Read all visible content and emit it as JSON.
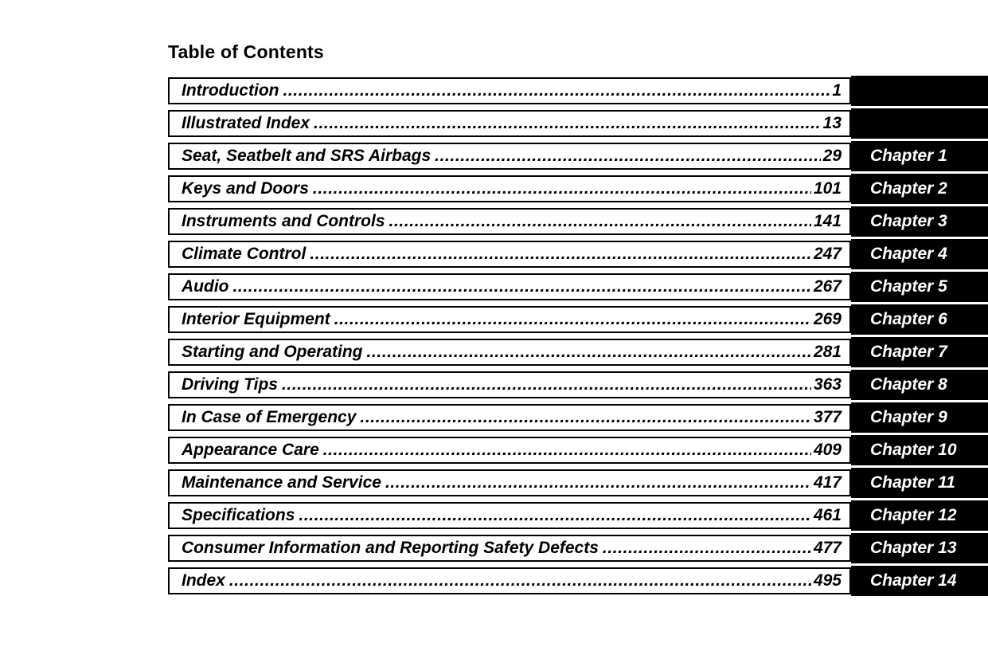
{
  "page": {
    "title": "Table of Contents"
  },
  "colors": {
    "background": "#ffffff",
    "ink": "#000000",
    "tab_bg": "#000000",
    "tab_text": "#ffffff"
  },
  "toc": {
    "entries": [
      {
        "label": "Introduction",
        "page": "1",
        "chapter": ""
      },
      {
        "label": "Illustrated Index",
        "page": "13",
        "chapter": ""
      },
      {
        "label": "Seat, Seatbelt and SRS Airbags",
        "page": "29",
        "chapter": "Chapter 1"
      },
      {
        "label": "Keys and Doors",
        "page": "101",
        "chapter": "Chapter 2"
      },
      {
        "label": "Instruments and Controls",
        "page": "141",
        "chapter": "Chapter 3"
      },
      {
        "label": "Climate Control",
        "page": "247",
        "chapter": "Chapter 4"
      },
      {
        "label": "Audio",
        "page": "267",
        "chapter": "Chapter 5"
      },
      {
        "label": "Interior Equipment",
        "page": "269",
        "chapter": "Chapter 6"
      },
      {
        "label": "Starting and Operating",
        "page": "281",
        "chapter": "Chapter 7"
      },
      {
        "label": "Driving Tips",
        "page": "363",
        "chapter": "Chapter 8"
      },
      {
        "label": "In Case of Emergency",
        "page": "377",
        "chapter": "Chapter 9"
      },
      {
        "label": "Appearance Care",
        "page": "409",
        "chapter": "Chapter 10"
      },
      {
        "label": "Maintenance and Service",
        "page": "417",
        "chapter": "Chapter 11"
      },
      {
        "label": "Specifications",
        "page": "461",
        "chapter": "Chapter 12"
      },
      {
        "label": "Consumer Information and Reporting Safety Defects",
        "page": "477",
        "chapter": "Chapter 13"
      },
      {
        "label": "Index",
        "page": "495",
        "chapter": "Chapter 14"
      }
    ]
  }
}
